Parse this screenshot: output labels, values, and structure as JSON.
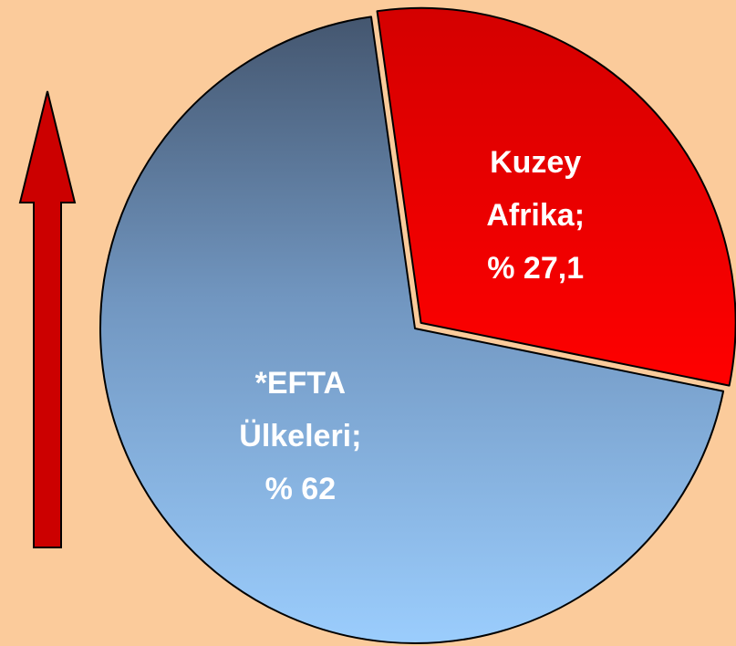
{
  "chart_data": {
    "type": "pie",
    "categories": [
      "Kuzey Afrika;",
      "*EFTA Ülkeleri;"
    ],
    "values": [
      27.1,
      62
    ],
    "value_labels": [
      "% 27,1",
      "% 62"
    ]
  }
}
